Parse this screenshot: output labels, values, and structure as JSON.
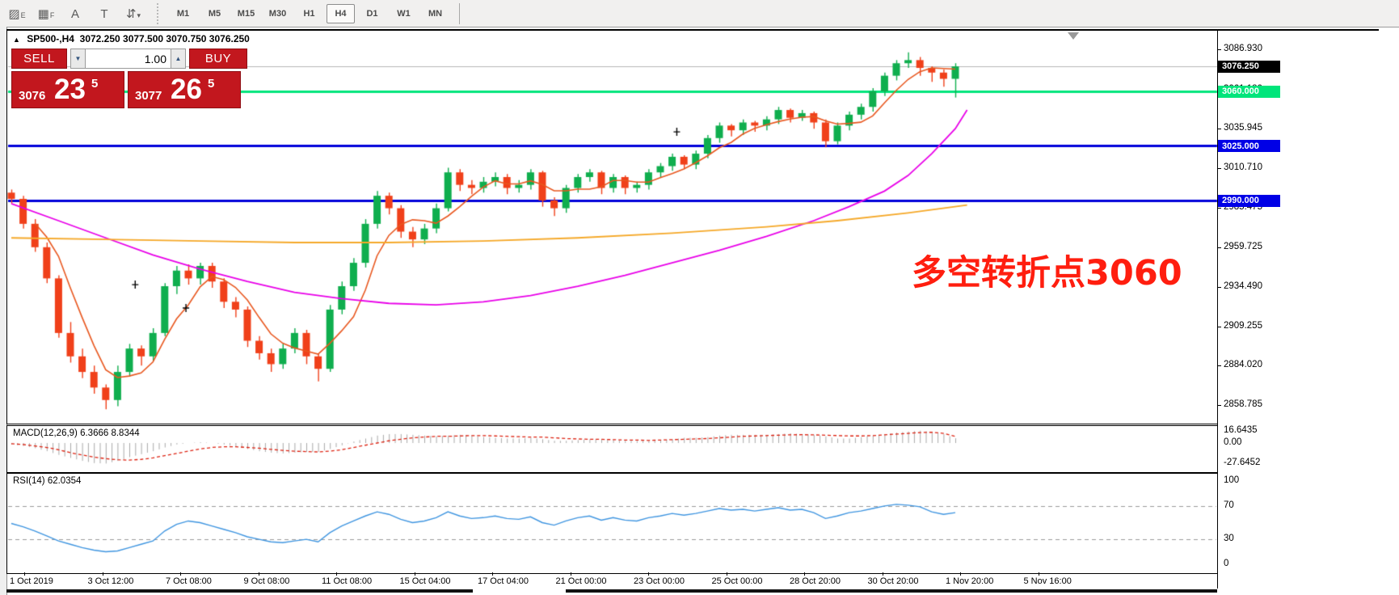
{
  "window": {
    "marker": "▲",
    "title_symbol": "SP500-,H4",
    "title_ohlc": "3072.250 3077.500 3070.750 3076.250"
  },
  "toolbar": {
    "tools": [
      {
        "name": "indicator-style-icon",
        "glyph": "▨",
        "sub": "E"
      },
      {
        "name": "grid-icon",
        "glyph": "▦",
        "sub": "F"
      },
      {
        "name": "text-label-icon",
        "glyph": "A",
        "sub": ""
      },
      {
        "name": "text-box-icon",
        "glyph": "T",
        "sub": ""
      },
      {
        "name": "objects-arrange-icon",
        "glyph": "⇵",
        "sub": "▾"
      }
    ],
    "timeframes": [
      "M1",
      "M5",
      "M15",
      "M30",
      "H1",
      "H4",
      "D1",
      "W1",
      "MN"
    ],
    "active_timeframe": "H4"
  },
  "trade_panel": {
    "sell_label": "SELL",
    "buy_label": "BUY",
    "volume_value": "1.00",
    "sell_price_prefix": "3076",
    "sell_price_main": "23",
    "sell_price_sup": "5",
    "buy_price_prefix": "3077",
    "buy_price_main": "26",
    "buy_price_sup": "5"
  },
  "annotation": {
    "text": "多空转折点3060"
  },
  "price_axis": {
    "ticks": [
      "3086.930",
      "3061.180",
      "3035.945",
      "3010.710",
      "2985.475",
      "2959.725",
      "2934.490",
      "2909.255",
      "2884.020",
      "2858.785"
    ],
    "current_price": 3076.25,
    "current_price_label": "3076.250"
  },
  "hlines": [
    {
      "label": "3060.000",
      "price": 3060,
      "color": "#00e57b"
    },
    {
      "label": "3025.000",
      "price": 3025,
      "color": "#0000d9"
    },
    {
      "label": "2990.000",
      "price": 2990,
      "color": "#0000d9"
    }
  ],
  "macd": {
    "label": "MACD(12,26,9) 6.3666 8.8344",
    "axis_ticks": [
      {
        "label": "16.6435",
        "value": 16.6435
      },
      {
        "label": "0.00",
        "value": 0
      },
      {
        "label": "-27.6452",
        "value": -27.6452
      }
    ],
    "histogram": [
      -2,
      -4,
      -7,
      -11,
      -16,
      -20,
      -24,
      -27,
      -27.6,
      -24,
      -19,
      -15,
      -11,
      -6,
      -2,
      0,
      1,
      0,
      -2,
      -5,
      -8,
      -11,
      -13,
      -14,
      -13,
      -12,
      -12,
      -8,
      -3,
      2,
      6,
      10,
      12,
      12,
      11,
      10,
      9,
      10,
      11,
      10,
      8,
      7,
      6,
      6,
      7,
      5,
      3,
      3,
      4,
      5,
      5,
      4,
      3,
      3,
      3,
      4,
      5,
      7,
      7,
      8,
      10,
      11,
      11,
      11,
      11,
      12,
      13,
      12,
      11,
      9,
      6,
      6,
      8,
      10,
      12,
      14,
      15.5,
      16.6,
      15,
      12,
      6.4
    ],
    "signal": [
      -1,
      -2,
      -4,
      -6,
      -9,
      -13,
      -16,
      -19,
      -21,
      -22.5,
      -23,
      -22,
      -20,
      -17,
      -14,
      -11,
      -8,
      -6,
      -5,
      -5,
      -6,
      -7,
      -8.5,
      -10,
      -11,
      -11.5,
      -12,
      -11,
      -9,
      -6,
      -3,
      0,
      3,
      5,
      7,
      8,
      9,
      9,
      9.5,
      10,
      10,
      9.5,
      9,
      8.5,
      8,
      8,
      7,
      6,
      5.5,
      5,
      5,
      4.5,
      4,
      4,
      3.5,
      4,
      4.5,
      5,
      5.5,
      6,
      7,
      8,
      9,
      9.5,
      10,
      10.5,
      11,
      11.2,
      11,
      10.5,
      10,
      9.5,
      9.5,
      10,
      11,
      12,
      13,
      14,
      14.5,
      13,
      8.8
    ]
  },
  "rsi": {
    "label": "RSI(14) 62.0354",
    "axis_ticks": [
      {
        "label": "100",
        "value": 100
      },
      {
        "label": "70",
        "value": 70
      },
      {
        "label": "30",
        "value": 30
      },
      {
        "label": "0",
        "value": 0
      }
    ],
    "levels": [
      70,
      30
    ],
    "values": [
      49,
      45,
      40,
      34,
      28,
      24,
      20,
      17,
      15,
      16,
      20,
      24,
      28,
      40,
      48,
      52,
      50,
      46,
      42,
      38,
      33,
      30,
      27,
      26,
      28,
      30,
      27,
      38,
      46,
      52,
      58,
      63,
      60,
      54,
      50,
      52,
      56,
      63,
      58,
      55,
      56,
      58,
      55,
      54,
      57,
      50,
      47,
      52,
      56,
      58,
      53,
      56,
      53,
      52,
      56,
      58,
      61,
      59,
      61,
      64,
      67,
      65,
      66,
      64,
      66,
      68,
      65,
      66,
      62,
      55,
      58,
      62,
      64,
      67,
      70,
      72,
      71,
      69,
      63,
      60,
      62
    ]
  },
  "time_axis": {
    "labels": [
      "1 Oct 2019",
      "3 Oct 12:00",
      "7 Oct 08:00",
      "9 Oct 08:00",
      "11 Oct 08:00",
      "15 Oct 04:00",
      "17 Oct 04:00",
      "21 Oct 00:00",
      "23 Oct 00:00",
      "25 Oct 00:00",
      "28 Oct 20:00",
      "30 Oct 20:00",
      "1 Nov 20:00",
      "5 Nov 16:00"
    ]
  },
  "chart_data": {
    "type": "candlestick",
    "symbol": "SP500-",
    "timeframe": "H4",
    "ohlc_current": {
      "open": 3072.25,
      "high": 3077.5,
      "low": 3070.75,
      "close": 3076.25
    },
    "price_axis_range": [
      2858.785,
      3086.93
    ],
    "candles": [
      [
        2995,
        2997,
        2988,
        2991
      ],
      [
        2991,
        2993,
        2972,
        2975
      ],
      [
        2975,
        2978,
        2957,
        2960
      ],
      [
        2960,
        2963,
        2937,
        2940
      ],
      [
        2940,
        2942,
        2902,
        2905
      ],
      [
        2905,
        2912,
        2886,
        2890
      ],
      [
        2890,
        2895,
        2876,
        2880
      ],
      [
        2880,
        2884,
        2866,
        2870
      ],
      [
        2870,
        2872,
        2856,
        2862
      ],
      [
        2862,
        2884,
        2858,
        2880
      ],
      [
        2880,
        2898,
        2877,
        2895
      ],
      [
        2895,
        2897,
        2884,
        2890
      ],
      [
        2890,
        2908,
        2887,
        2905
      ],
      [
        2905,
        2937,
        2903,
        2935
      ],
      [
        2935,
        2948,
        2930,
        2945
      ],
      [
        2945,
        2949,
        2936,
        2940
      ],
      [
        2940,
        2950,
        2936,
        2948
      ],
      [
        2948,
        2950,
        2934,
        2938
      ],
      [
        2938,
        2940,
        2921,
        2925
      ],
      [
        2925,
        2928,
        2915,
        2920
      ],
      [
        2920,
        2922,
        2896,
        2900
      ],
      [
        2900,
        2903,
        2888,
        2892
      ],
      [
        2892,
        2895,
        2880,
        2885
      ],
      [
        2885,
        2898,
        2882,
        2895
      ],
      [
        2895,
        2908,
        2892,
        2905
      ],
      [
        2905,
        2907,
        2885,
        2890
      ],
      [
        2890,
        2892,
        2874,
        2882
      ],
      [
        2882,
        2923,
        2880,
        2920
      ],
      [
        2920,
        2938,
        2917,
        2935
      ],
      [
        2935,
        2953,
        2932,
        2950
      ],
      [
        2950,
        2978,
        2947,
        2975
      ],
      [
        2975,
        2996,
        2972,
        2993
      ],
      [
        2993,
        2995,
        2981,
        2985
      ],
      [
        2985,
        2987,
        2966,
        2970
      ],
      [
        2970,
        2973,
        2960,
        2965
      ],
      [
        2965,
        2975,
        2962,
        2972
      ],
      [
        2972,
        2988,
        2969,
        2985
      ],
      [
        2985,
        3011,
        2983,
        3008
      ],
      [
        3008,
        3010,
        2996,
        3000
      ],
      [
        3000,
        3003,
        2994,
        2998
      ],
      [
        2998,
        3005,
        2995,
        3002
      ],
      [
        3002,
        3008,
        2999,
        3005
      ],
      [
        3005,
        3007,
        2994,
        2998
      ],
      [
        2998,
        3003,
        2995,
        3000
      ],
      [
        3000,
        3010,
        2997,
        3008
      ],
      [
        3008,
        3009,
        2986,
        2990
      ],
      [
        2990,
        2992,
        2980,
        2985
      ],
      [
        2985,
        3000,
        2982,
        2998
      ],
      [
        2998,
        3007,
        2995,
        3005
      ],
      [
        3005,
        3010,
        3002,
        3008
      ],
      [
        3008,
        3009,
        2994,
        2998
      ],
      [
        2998,
        3007,
        2995,
        3005
      ],
      [
        3005,
        3006,
        2994,
        2998
      ],
      [
        2998,
        3002,
        2995,
        3000
      ],
      [
        3000,
        3010,
        2997,
        3008
      ],
      [
        3008,
        3014,
        3005,
        3012
      ],
      [
        3012,
        3020,
        3009,
        3018
      ],
      [
        3018,
        3019,
        3010,
        3013
      ],
      [
        3013,
        3022,
        3010,
        3020
      ],
      [
        3020,
        3032,
        3017,
        3030
      ],
      [
        3030,
        3040,
        3027,
        3038
      ],
      [
        3038,
        3039,
        3031,
        3035
      ],
      [
        3035,
        3042,
        3032,
        3040
      ],
      [
        3040,
        3041,
        3034,
        3038
      ],
      [
        3038,
        3044,
        3035,
        3042
      ],
      [
        3042,
        3050,
        3039,
        3048
      ],
      [
        3048,
        3049,
        3040,
        3043
      ],
      [
        3043,
        3048,
        3041,
        3046
      ],
      [
        3046,
        3047,
        3036,
        3040
      ],
      [
        3040,
        3042,
        3024,
        3028
      ],
      [
        3028,
        3040,
        3026,
        3038
      ],
      [
        3038,
        3047,
        3035,
        3045
      ],
      [
        3045,
        3052,
        3042,
        3050
      ],
      [
        3050,
        3062,
        3047,
        3060
      ],
      [
        3060,
        3072,
        3057,
        3070
      ],
      [
        3070,
        3080,
        3067,
        3078
      ],
      [
        3078,
        3085,
        3075,
        3080
      ],
      [
        3080,
        3082,
        3070,
        3075
      ],
      [
        3075,
        3076,
        3066,
        3072
      ],
      [
        3072,
        3074,
        3063,
        3068
      ],
      [
        3068,
        3078,
        3056,
        3076
      ]
    ],
    "ma_mid_anchors": [
      [
        0,
        2988
      ],
      [
        4,
        2977
      ],
      [
        8,
        2966
      ],
      [
        12,
        2955
      ],
      [
        16,
        2946
      ],
      [
        20,
        2938
      ],
      [
        24,
        2931
      ],
      [
        28,
        2927
      ],
      [
        32,
        2924
      ],
      [
        36,
        2923
      ],
      [
        40,
        2925
      ],
      [
        44,
        2929
      ],
      [
        48,
        2935
      ],
      [
        52,
        2942
      ],
      [
        56,
        2950
      ],
      [
        60,
        2958
      ],
      [
        64,
        2967
      ],
      [
        68,
        2977
      ],
      [
        71,
        2986
      ],
      [
        74,
        2996
      ],
      [
        76,
        3006
      ],
      [
        78,
        3020
      ],
      [
        80,
        3036
      ],
      [
        81,
        3048
      ]
    ],
    "ma_slow_anchors": [
      [
        0,
        2966
      ],
      [
        8,
        2965
      ],
      [
        16,
        2964
      ],
      [
        24,
        2963
      ],
      [
        32,
        2963
      ],
      [
        40,
        2964
      ],
      [
        48,
        2966
      ],
      [
        56,
        2969
      ],
      [
        64,
        2973
      ],
      [
        70,
        2977
      ],
      [
        76,
        2982
      ],
      [
        81,
        2987
      ]
    ],
    "markers": [
      {
        "bar": 10.5,
        "price": 2936
      },
      {
        "bar": 14.8,
        "price": 2921
      },
      {
        "bar": 56.4,
        "price": 3034
      }
    ]
  },
  "colors": {
    "up": "#0fae4e",
    "down": "#f0401a",
    "ma_fast": "#e8571f",
    "ma_mid": "#e800e8",
    "ma_slow": "#f5a828",
    "macd_hist": "#a8a8a8",
    "macd_signal": "#dd2211",
    "rsi_line": "#3f95e0",
    "annotation_red": "#ff1e0f",
    "current_price_line": "#b4b4b4",
    "badge_current_bg": "#000000",
    "badge_green_bg": "#00e57b",
    "badge_blue_bg": "#0000e6"
  }
}
